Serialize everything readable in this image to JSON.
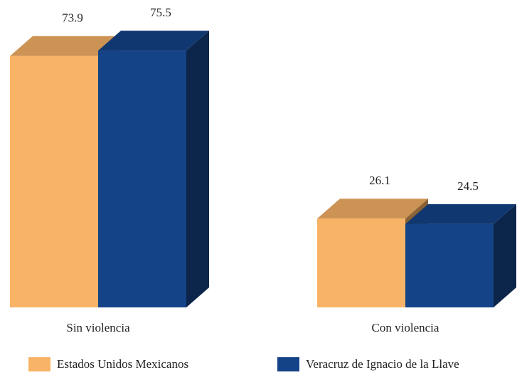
{
  "chart_data": {
    "type": "bar3d",
    "categories": [
      "Sin violencia",
      "Con violencia"
    ],
    "series": [
      {
        "name": "Estados Unidos Mexicanos",
        "color": "#f9b366",
        "values": [
          73.9,
          26.1
        ]
      },
      {
        "name": "Veracruz de Ignacio de la Llave",
        "color": "#154388",
        "values": [
          75.5,
          24.5
        ]
      }
    ]
  }
}
